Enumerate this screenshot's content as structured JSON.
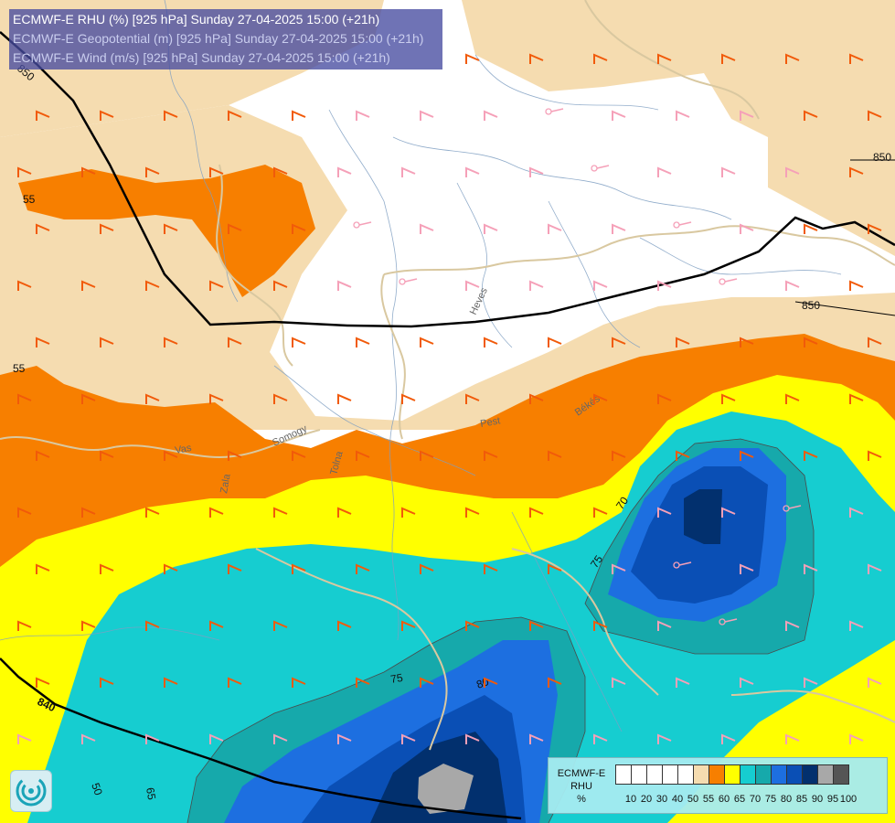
{
  "title": {
    "line1": "ECMWF-E RHU (%) [925 hPa] Sunday 27-04-2025 15:00 (+21h)",
    "line2": "ECMWF-E Geopotential (m) [925 hPa] Sunday 27-04-2025 15:00 (+21h)",
    "line3": "ECMWF-E Wind (m/s) [925 hPa] Sunday 27-04-2025 15:00 (+21h)"
  },
  "legend": {
    "title_line1": "ECMWF-E",
    "title_line2": "RHU",
    "title_line3": "%",
    "levels": [
      "10",
      "20",
      "30",
      "40",
      "50",
      "55",
      "60",
      "65",
      "70",
      "75",
      "80",
      "85",
      "90",
      "95",
      "100"
    ],
    "colors": [
      "#ffffff",
      "#ffffff",
      "#ffffff",
      "#ffffff",
      "#ffffff",
      "#f5dcb0",
      "#f77f00",
      "#ffff00",
      "#16cdd0",
      "#16a9ab",
      "#1d6fe0",
      "#0a4fb5",
      "#02306e",
      "#a8a8a8",
      "#555555"
    ]
  },
  "isolines": {
    "geopotential": [
      {
        "label": "850",
        "kind": "top-left"
      },
      {
        "label": "850",
        "kind": "right-upper"
      },
      {
        "label": "850",
        "kind": "right-middle"
      },
      {
        "label": "840",
        "kind": "bottom-left"
      }
    ],
    "rhu": [
      {
        "label": "55"
      },
      {
        "label": "55"
      },
      {
        "label": "70"
      },
      {
        "label": "75"
      },
      {
        "label": "75"
      },
      {
        "label": "80"
      },
      {
        "label": "50"
      },
      {
        "label": "65"
      }
    ]
  },
  "places": [
    "Vas",
    "Zala",
    "Somogy",
    "Tolna",
    "Pest",
    "Békés",
    "Heves"
  ],
  "colors": {
    "title_bg": "#464ba0",
    "wind_barb_strong": "#f15a0a",
    "wind_barb_weak": "#f5a0b8",
    "border": "#d9c8a0",
    "river": "#7f9fc2"
  },
  "icons": {
    "logo": "ecmwf-swirl-logo",
    "barbs": "wind-barb-icon"
  }
}
